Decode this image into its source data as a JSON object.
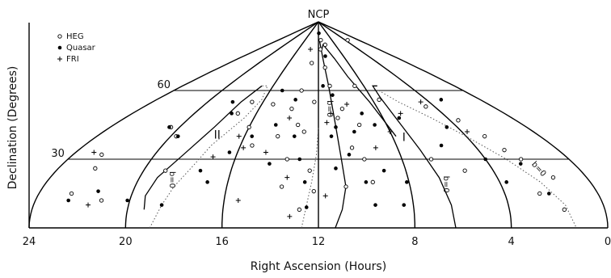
{
  "chart_data": {
    "type": "scatter",
    "title": "",
    "xlabel": "Right Ascension (Hours)",
    "ylabel": "Declination (Degrees)",
    "xlim": [
      24,
      0
    ],
    "ylim": [
      0,
      90
    ],
    "x_ticks": [
      "24",
      "20",
      "16",
      "12",
      "8",
      "4",
      "0"
    ],
    "dec_gridlines": [
      {
        "dec": 60,
        "label": "60"
      },
      {
        "dec": 30,
        "label": "30"
      }
    ],
    "pole_label": "NCP",
    "legend_placement": "top-left",
    "legend": [
      {
        "label": "HEG",
        "marker": "open-circle"
      },
      {
        "label": "Quasar",
        "marker": "filled-circle"
      },
      {
        "label": "FRI",
        "marker": "plus"
      }
    ],
    "region_labels": [
      {
        "text": "II",
        "ra": 17.4,
        "dec": 39
      },
      {
        "text": "I",
        "ra": 7.5,
        "dec": 38
      }
    ],
    "galactic_labels": [
      {
        "text": "b=0",
        "ra": 11.4,
        "dec": 52
      },
      {
        "text": "b=0",
        "ra": 18.6,
        "dec": 21
      },
      {
        "text": "b=0",
        "ra": 6.5,
        "dec": 19
      },
      {
        "text": "b=0",
        "ra": 2.0,
        "dec": 25
      }
    ],
    "series": [
      {
        "name": "HEG",
        "points": [
          [
            20.5,
            44
          ],
          [
            19.7,
            40
          ],
          [
            22.6,
            32
          ],
          [
            22.3,
            26
          ],
          [
            22.6,
            15
          ],
          [
            21.2,
            12
          ],
          [
            19.0,
            25
          ],
          [
            17.2,
            50
          ],
          [
            16.8,
            55
          ],
          [
            16.0,
            44
          ],
          [
            15.4,
            36
          ],
          [
            15.2,
            54
          ],
          [
            14.2,
            40
          ],
          [
            13.8,
            52
          ],
          [
            13.4,
            60
          ],
          [
            13.2,
            45
          ],
          [
            12.8,
            42
          ],
          [
            12.3,
            55
          ],
          [
            13.5,
            30
          ],
          [
            12.4,
            25
          ],
          [
            13.6,
            18
          ],
          [
            12.8,
            8
          ],
          [
            12.2,
            16
          ],
          [
            11.6,
            78
          ],
          [
            11.3,
            82
          ],
          [
            11.0,
            62
          ],
          [
            10.8,
            48
          ],
          [
            10.4,
            52
          ],
          [
            10.3,
            35
          ],
          [
            9.6,
            45
          ],
          [
            9.8,
            30
          ],
          [
            9.6,
            20
          ],
          [
            10.8,
            18
          ],
          [
            8.8,
            62
          ],
          [
            7.5,
            56
          ],
          [
            6.6,
            30
          ],
          [
            5.3,
            25
          ],
          [
            4.6,
            53
          ],
          [
            3.5,
            47
          ],
          [
            3.0,
            40
          ],
          [
            2.7,
            34
          ],
          [
            2.3,
            30
          ],
          [
            1.5,
            22
          ],
          [
            1.7,
            8
          ],
          [
            2.5,
            15
          ],
          [
            3.3,
            82
          ],
          [
            12.9,
            72
          ],
          [
            10.4,
            80
          ],
          [
            11.2,
            70
          ]
        ]
      },
      {
        "name": "Quasar",
        "points": [
          [
            20.6,
            44
          ],
          [
            19.6,
            40
          ],
          [
            22.6,
            12
          ],
          [
            21.5,
            16
          ],
          [
            18.2,
            55
          ],
          [
            17.6,
            50
          ],
          [
            17.4,
            25
          ],
          [
            16.9,
            20
          ],
          [
            16.4,
            33
          ],
          [
            15.6,
            40
          ],
          [
            15.0,
            60
          ],
          [
            14.5,
            45
          ],
          [
            14.3,
            28
          ],
          [
            13.7,
            56
          ],
          [
            13.3,
            40
          ],
          [
            12.9,
            30
          ],
          [
            12.6,
            20
          ],
          [
            12.5,
            9
          ],
          [
            11.6,
            62
          ],
          [
            11.3,
            40
          ],
          [
            11.2,
            26
          ],
          [
            10.9,
            58
          ],
          [
            11.0,
            44
          ],
          [
            10.5,
            32
          ],
          [
            10.0,
            42
          ],
          [
            9.9,
            20
          ],
          [
            9.6,
            10
          ],
          [
            9.2,
            50
          ],
          [
            8.7,
            45
          ],
          [
            8.4,
            10
          ],
          [
            8.1,
            20
          ],
          [
            7.0,
            48
          ],
          [
            5.7,
            36
          ],
          [
            4.6,
            44
          ],
          [
            4.0,
            30
          ],
          [
            3.7,
            20
          ],
          [
            2.5,
            28
          ],
          [
            2.1,
            15
          ],
          [
            2.9,
            56
          ],
          [
            11.8,
            85
          ],
          [
            10.9,
            75
          ],
          [
            9.0,
            25
          ],
          [
            18.6,
            10
          ],
          [
            20.1,
            12
          ]
        ]
      },
      {
        "name": "FRI",
        "points": [
          [
            23.1,
            33
          ],
          [
            21.7,
            10
          ],
          [
            16.3,
            40
          ],
          [
            15.8,
            35
          ],
          [
            14.6,
            33
          ],
          [
            13.8,
            48
          ],
          [
            13.4,
            22
          ],
          [
            13.2,
            5
          ],
          [
            11.7,
            14
          ],
          [
            11.5,
            46
          ],
          [
            11.2,
            50
          ],
          [
            10.0,
            54
          ],
          [
            9.1,
            35
          ],
          [
            8.0,
            42
          ],
          [
            6.7,
            50
          ],
          [
            4.6,
            55
          ],
          [
            3.7,
            42
          ],
          [
            13.6,
            78
          ],
          [
            17.1,
            31
          ],
          [
            15.4,
            12
          ]
        ]
      }
    ]
  }
}
